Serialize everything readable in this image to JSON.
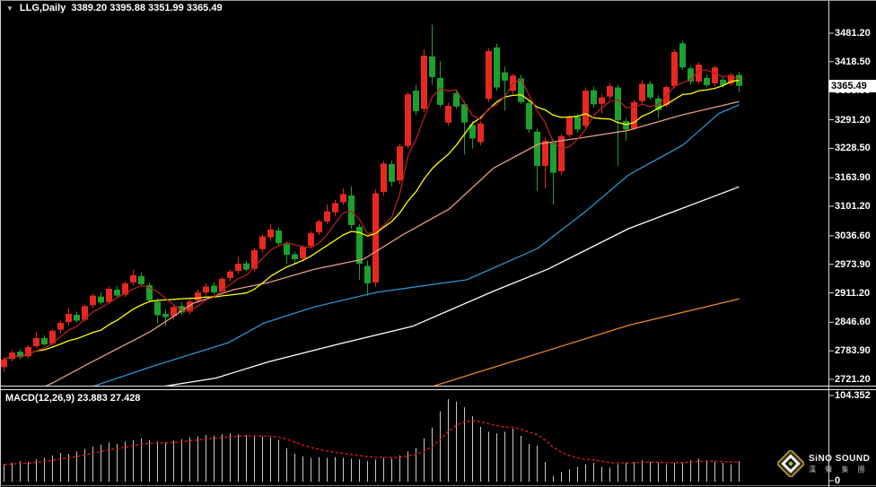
{
  "title_bar": {
    "collapse_icon": "▼",
    "text": "LLG,Daily  3389.20 3395.88 3351.99 3365.49"
  },
  "price_badge": {
    "value": "3365.49",
    "bg": "#ffffff",
    "text_color": "#000000"
  },
  "macd_panel_label": "MACD(12,26,9) 23.883 27.428",
  "logo": {
    "brand_line1": "SiNO SOUND",
    "brand_line2": "漢 聲 集 團"
  },
  "chart_data": {
    "type": "candlestick",
    "symbol": "LLG",
    "timeframe": "Daily",
    "last_candle": {
      "open": 3389.2,
      "high": 3395.88,
      "low": 3351.99,
      "close": 3365.49
    },
    "current_price": 3365.49,
    "price_axis_labels": [
      "3481.20",
      "3418.50",
      "3355.90",
      "3291.20",
      "3228.50",
      "3163.90",
      "3101.20",
      "3036.60",
      "2973.90",
      "2911.20",
      "2846.60",
      "2783.90",
      "2721.20"
    ],
    "colors": {
      "background": "#000000",
      "up_candle": "#e8281e",
      "down_candle": "#1ca12c",
      "axis_text": "#ffffff",
      "axis_line": "#d8d8d8",
      "window_border": "#9c9c9c"
    },
    "candles_ohlc": [
      [
        2748,
        2770,
        2738,
        2765
      ],
      [
        2766,
        2786,
        2760,
        2780
      ],
      [
        2782,
        2788,
        2765,
        2770
      ],
      [
        2772,
        2796,
        2768,
        2792
      ],
      [
        2794,
        2825,
        2790,
        2812
      ],
      [
        2812,
        2818,
        2795,
        2798
      ],
      [
        2800,
        2832,
        2796,
        2828
      ],
      [
        2830,
        2850,
        2822,
        2845
      ],
      [
        2847,
        2878,
        2840,
        2865
      ],
      [
        2863,
        2870,
        2846,
        2850
      ],
      [
        2852,
        2886,
        2848,
        2882
      ],
      [
        2884,
        2910,
        2878,
        2905
      ],
      [
        2903,
        2912,
        2885,
        2890
      ],
      [
        2891,
        2925,
        2886,
        2920
      ],
      [
        2918,
        2926,
        2900,
        2905
      ],
      [
        2907,
        2936,
        2902,
        2932
      ],
      [
        2934,
        2962,
        2928,
        2950
      ],
      [
        2948,
        2956,
        2925,
        2930
      ],
      [
        2928,
        2934,
        2890,
        2895
      ],
      [
        2892,
        2898,
        2845,
        2862
      ],
      [
        2865,
        2875,
        2838,
        2858
      ],
      [
        2860,
        2885,
        2852,
        2880
      ],
      [
        2882,
        2890,
        2862,
        2868
      ],
      [
        2870,
        2896,
        2864,
        2892
      ],
      [
        2894,
        2918,
        2888,
        2912
      ],
      [
        2912,
        2932,
        2905,
        2925
      ],
      [
        2927,
        2934,
        2908,
        2912
      ],
      [
        2914,
        2946,
        2908,
        2942
      ],
      [
        2944,
        2962,
        2936,
        2958
      ],
      [
        2959,
        2990,
        2952,
        2975
      ],
      [
        2976,
        2982,
        2958,
        2962
      ],
      [
        2964,
        3010,
        2958,
        3005
      ],
      [
        3007,
        3040,
        3000,
        3035
      ],
      [
        3033,
        3062,
        3025,
        3050
      ],
      [
        3048,
        3055,
        3015,
        3020
      ],
      [
        3018,
        3024,
        2975,
        2995
      ],
      [
        2996,
        3002,
        2975,
        2985
      ],
      [
        2987,
        3016,
        2980,
        3012
      ],
      [
        3014,
        3046,
        3008,
        3042
      ],
      [
        3044,
        3072,
        3038,
        3068
      ],
      [
        3068,
        3105,
        3062,
        3090
      ],
      [
        3088,
        3115,
        3080,
        3108
      ],
      [
        3110,
        3140,
        3104,
        3128
      ],
      [
        3125,
        3145,
        3052,
        3060
      ],
      [
        3056,
        3062,
        2940,
        2975
      ],
      [
        2970,
        2982,
        2905,
        2932
      ],
      [
        2934,
        3138,
        2925,
        3130
      ],
      [
        3133,
        3200,
        3125,
        3195
      ],
      [
        3194,
        3202,
        3145,
        3155
      ],
      [
        3158,
        3238,
        3150,
        3233
      ],
      [
        3234,
        3352,
        3228,
        3347
      ],
      [
        3355,
        3368,
        3302,
        3310
      ],
      [
        3315,
        3445,
        3308,
        3432
      ],
      [
        3430,
        3500,
        3368,
        3385
      ],
      [
        3383,
        3420,
        3318,
        3324
      ],
      [
        3285,
        3328,
        3278,
        3322
      ],
      [
        3350,
        3358,
        3315,
        3320
      ],
      [
        3325,
        3332,
        3215,
        3285
      ],
      [
        3280,
        3288,
        3228,
        3250
      ],
      [
        3242,
        3288,
        3235,
        3283
      ],
      [
        3337,
        3448,
        3330,
        3442
      ],
      [
        3450,
        3458,
        3355,
        3362
      ],
      [
        3395,
        3408,
        3311,
        3377
      ],
      [
        3355,
        3392,
        3348,
        3388
      ],
      [
        3382,
        3390,
        3325,
        3330
      ],
      [
        3328,
        3336,
        3262,
        3270
      ],
      [
        3265,
        3272,
        3134,
        3190
      ],
      [
        3190,
        3252,
        3140,
        3245
      ],
      [
        3242,
        3248,
        3105,
        3175
      ],
      [
        3178,
        3260,
        3170,
        3255
      ],
      [
        3258,
        3302,
        3252,
        3297
      ],
      [
        3297,
        3305,
        3262,
        3270
      ],
      [
        3278,
        3362,
        3272,
        3355
      ],
      [
        3356,
        3364,
        3318,
        3325
      ],
      [
        3326,
        3348,
        3305,
        3340
      ],
      [
        3342,
        3372,
        3335,
        3365
      ],
      [
        3362,
        3368,
        3190,
        3290
      ],
      [
        3288,
        3295,
        3245,
        3270
      ],
      [
        3272,
        3335,
        3268,
        3330
      ],
      [
        3332,
        3378,
        3326,
        3370
      ],
      [
        3370,
        3376,
        3335,
        3340
      ],
      [
        3338,
        3345,
        3295,
        3312
      ],
      [
        3324,
        3366,
        3318,
        3363
      ],
      [
        3365,
        3446,
        3360,
        3440
      ],
      [
        3459,
        3465,
        3400,
        3406
      ],
      [
        3404,
        3410,
        3368,
        3375
      ],
      [
        3375,
        3418,
        3370,
        3412
      ],
      [
        3383,
        3390,
        3362,
        3367
      ],
      [
        3371,
        3410,
        3365,
        3406
      ],
      [
        3379,
        3386,
        3362,
        3367
      ],
      [
        3370,
        3394,
        3366,
        3390
      ],
      [
        3389.2,
        3395.88,
        3351.99,
        3365.49
      ]
    ],
    "moving_averages": {
      "fast": {
        "period": 5,
        "color": "#b22020"
      },
      "medium": {
        "period": 13,
        "color": "#ffff00"
      },
      "overlays": [
        {
          "name": "ma-salmon",
          "color": "#e79b84",
          "points": [
            [
              5,
              2705
            ],
            [
              6.2,
              2715
            ],
            [
              10.6,
              2757
            ],
            [
              18.1,
              2826
            ],
            [
              23.4,
              2888
            ],
            [
              28.4,
              2918
            ],
            [
              32.8,
              2934
            ],
            [
              38.4,
              2963
            ],
            [
              44.5,
              2985
            ],
            [
              49.5,
              3040
            ],
            [
              55.1,
              3095
            ],
            [
              60.6,
              3185
            ],
            [
              66.2,
              3238
            ],
            [
              71.7,
              3252
            ],
            [
              77.3,
              3268
            ],
            [
              84,
              3302
            ],
            [
              91,
              3331
            ]
          ]
        },
        {
          "name": "ma-blue",
          "color": "#2b93cf",
          "points": [
            [
              10,
              2700
            ],
            [
              18.4,
              2750
            ],
            [
              27.8,
              2802
            ],
            [
              32.2,
              2845
            ],
            [
              38.4,
              2880
            ],
            [
              46,
              2912
            ],
            [
              57.3,
              2940
            ],
            [
              66,
              3008
            ],
            [
              72,
              3090
            ],
            [
              77.3,
              3170
            ],
            [
              84,
              3235
            ],
            [
              88.5,
              3305
            ],
            [
              91,
              3324
            ]
          ]
        },
        {
          "name": "ma-white",
          "color": "#ffffff",
          "points": [
            [
              18,
              2701
            ],
            [
              26.2,
              2724
            ],
            [
              32.8,
              2760
            ],
            [
              41.7,
              2800
            ],
            [
              50.6,
              2838
            ],
            [
              60.6,
              2915
            ],
            [
              67.3,
              2963
            ],
            [
              77.3,
              3052
            ],
            [
              84,
              3097
            ],
            [
              91,
              3144
            ]
          ]
        },
        {
          "name": "ma-orange",
          "color": "#e8842a",
          "points": [
            [
              52,
              2700
            ],
            [
              61.4,
              2752
            ],
            [
              77.3,
              2840
            ],
            [
              91,
              2898
            ]
          ]
        }
      ]
    },
    "macd": {
      "label": "MACD(12,26,9) 23.883 27.428",
      "params": [
        12,
        26,
        9
      ],
      "macd_value": 23.883,
      "signal_value": 27.428,
      "scale_labels": [
        "104.352",
        "0"
      ],
      "scale_max": 104.352,
      "signal_period": 9,
      "histogram_color": "#c8c8c8",
      "signal_color": "#f01818",
      "histogram": [
        20,
        22,
        24,
        23,
        26,
        28,
        31,
        34,
        33,
        36,
        39,
        42,
        44,
        47,
        45,
        48,
        50,
        52,
        50,
        48,
        47,
        49,
        51,
        53,
        54,
        56,
        55,
        57,
        58,
        57,
        56,
        55,
        54,
        53,
        50,
        40,
        33,
        30,
        28,
        29,
        28,
        29,
        28,
        27,
        26,
        24,
        26,
        28,
        27,
        31,
        36,
        40,
        52,
        65,
        85,
        100,
        97,
        90,
        79,
        66,
        60,
        58,
        60,
        64,
        55,
        45,
        43,
        23,
        6,
        11,
        14,
        17,
        20,
        22,
        17,
        16,
        20,
        22,
        23,
        25,
        23,
        22,
        20,
        22,
        23,
        25,
        27,
        25,
        23,
        22,
        20,
        23.883
      ]
    }
  }
}
